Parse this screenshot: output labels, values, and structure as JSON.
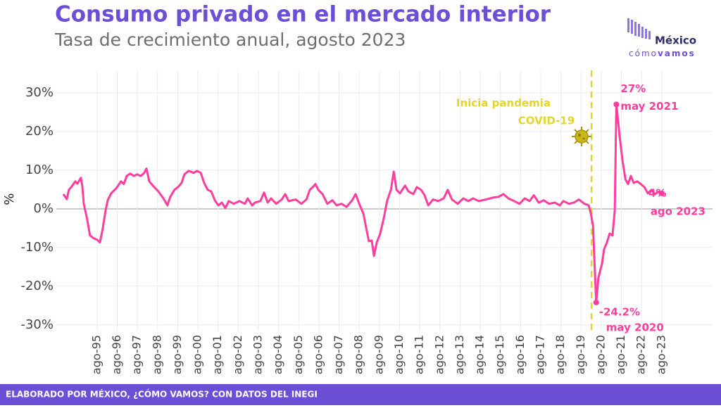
{
  "chart_data": {
    "type": "line",
    "title": "Consumo privado en el mercado interior",
    "subtitle": "Tasa de crecimiento anual, agosto 2023",
    "y_label": "%",
    "brand": {
      "name": "México",
      "tagline_a": "cómo",
      "tagline_b": "vamos"
    },
    "footer": "ELABORADO POR MÉXICO, ¿CÓMO VAMOS? CON DATOS DEL INEGI",
    "grid": true,
    "xlim": [
      1993.56,
      2026.1
    ],
    "ylim": [
      -31.5,
      35.8
    ],
    "yticks": [
      {
        "value": -30,
        "label": "-30%"
      },
      {
        "value": -20,
        "label": "-20%"
      },
      {
        "value": -10,
        "label": "-10%"
      },
      {
        "value": 0,
        "label": "0%"
      },
      {
        "value": 10,
        "label": "10%"
      },
      {
        "value": 20,
        "label": "20%"
      },
      {
        "value": 30,
        "label": "30%"
      }
    ],
    "xticks": [
      {
        "value": 1995.58,
        "label": "ago-95"
      },
      {
        "value": 1996.58,
        "label": "ago-96"
      },
      {
        "value": 1997.58,
        "label": "ago-97"
      },
      {
        "value": 1998.58,
        "label": "ago-98"
      },
      {
        "value": 1999.58,
        "label": "ago-99"
      },
      {
        "value": 2000.58,
        "label": "ago-00"
      },
      {
        "value": 2001.58,
        "label": "ago-01"
      },
      {
        "value": 2002.58,
        "label": "ago-02"
      },
      {
        "value": 2003.58,
        "label": "ago-03"
      },
      {
        "value": 2004.58,
        "label": "ago-04"
      },
      {
        "value": 2005.58,
        "label": "ago-05"
      },
      {
        "value": 2006.58,
        "label": "ago-06"
      },
      {
        "value": 2007.58,
        "label": "ago-07"
      },
      {
        "value": 2008.58,
        "label": "ago-08"
      },
      {
        "value": 2009.58,
        "label": "ago-09"
      },
      {
        "value": 2010.58,
        "label": "ago-10"
      },
      {
        "value": 2011.58,
        "label": "ago-11"
      },
      {
        "value": 2012.58,
        "label": "ago-12"
      },
      {
        "value": 2013.58,
        "label": "ago-13"
      },
      {
        "value": 2014.58,
        "label": "ago-14"
      },
      {
        "value": 2015.58,
        "label": "ago-15"
      },
      {
        "value": 2016.58,
        "label": "ago-16"
      },
      {
        "value": 2017.58,
        "label": "ago-17"
      },
      {
        "value": 2018.58,
        "label": "ago-18"
      },
      {
        "value": 2019.58,
        "label": "ago-19"
      },
      {
        "value": 2020.58,
        "label": "ago-20"
      },
      {
        "value": 2021.58,
        "label": "ago-21"
      },
      {
        "value": 2022.58,
        "label": "ago-22"
      },
      {
        "value": 2023.58,
        "label": "ago-23"
      }
    ],
    "x": [
      1993.91,
      1994.08,
      1994.18,
      1994.33,
      1994.5,
      1994.6,
      1994.78,
      1994.85,
      1994.92,
      1995.09,
      1995.23,
      1995.41,
      1995.58,
      1995.72,
      1995.86,
      1996.0,
      1996.11,
      1996.28,
      1996.53,
      1996.77,
      1996.91,
      1997.05,
      1997.22,
      1997.4,
      1997.57,
      1997.75,
      1997.92,
      1998.03,
      1998.17,
      1998.38,
      1998.62,
      1998.87,
      1999.07,
      1999.21,
      1999.42,
      1999.63,
      1999.77,
      1999.91,
      2000.12,
      2000.37,
      2000.54,
      2000.72,
      2000.89,
      2001.07,
      2001.24,
      2001.42,
      2001.59,
      2001.77,
      2001.94,
      2002.11,
      2002.36,
      2002.64,
      2002.91,
      2003.05,
      2003.27,
      2003.41,
      2003.68,
      2003.86,
      2004.04,
      2004.21,
      2004.46,
      2004.74,
      2004.91,
      2005.08,
      2005.43,
      2005.71,
      2005.96,
      2006.13,
      2006.31,
      2006.41,
      2006.55,
      2006.76,
      2007.0,
      2007.25,
      2007.46,
      2007.7,
      2007.95,
      2008.23,
      2008.4,
      2008.58,
      2008.79,
      2008.93,
      2009.06,
      2009.2,
      2009.31,
      2009.45,
      2009.62,
      2009.8,
      2009.97,
      2010.15,
      2010.29,
      2010.43,
      2010.6,
      2010.85,
      2011.02,
      2011.26,
      2011.44,
      2011.65,
      2011.82,
      2012.0,
      2012.24,
      2012.49,
      2012.77,
      2012.97,
      2013.18,
      2013.46,
      2013.74,
      2013.99,
      2014.23,
      2014.51,
      2014.86,
      2015.21,
      2015.49,
      2015.73,
      2015.98,
      2016.26,
      2016.53,
      2016.78,
      2017.03,
      2017.24,
      2017.48,
      2017.73,
      2018.0,
      2018.28,
      2018.53,
      2018.7,
      2018.98,
      2019.23,
      2019.47,
      2019.75,
      2019.96,
      2020.06,
      2020.17,
      2020.33,
      2020.44,
      2020.62,
      2020.72,
      2020.86,
      2021.0,
      2021.14,
      2021.25,
      2021.33,
      2021.5,
      2021.64,
      2021.78,
      2021.91,
      2022.05,
      2022.19,
      2022.37,
      2022.54,
      2022.72,
      2022.89,
      2023.07,
      2023.24,
      2023.42,
      2023.58
    ],
    "series": [
      {
        "name": "Consumo privado",
        "color": "#ff3d9e",
        "values": [
          3.8,
          2.5,
          4.9,
          5.8,
          7.1,
          6.5,
          8,
          5.8,
          1.3,
          -2.7,
          -6.9,
          -7.6,
          -8,
          -8.7,
          -5.1,
          -0.5,
          2.2,
          4,
          5.3,
          7.1,
          6.4,
          8.5,
          9.1,
          8.5,
          8.9,
          8.5,
          9.3,
          10.4,
          7.1,
          5.8,
          4.5,
          2.7,
          0.9,
          3.1,
          4.9,
          5.8,
          6.7,
          8.9,
          9.8,
          9.3,
          9.8,
          9.3,
          6.7,
          4.9,
          4.5,
          2.2,
          0.9,
          1.6,
          0.2,
          2,
          1.3,
          2,
          1.3,
          2.7,
          0.9,
          1.6,
          2,
          4.2,
          1.6,
          2.7,
          1.3,
          2.4,
          3.8,
          2,
          2.4,
          1.3,
          2.4,
          4.9,
          5.8,
          6.4,
          4.9,
          3.8,
          1.3,
          2.2,
          0.9,
          1.3,
          0.5,
          2.2,
          3.8,
          1.3,
          -1.3,
          -5.1,
          -8.4,
          -8.2,
          -12.2,
          -8.7,
          -6.4,
          -2.4,
          2.2,
          4.9,
          9.6,
          4.9,
          4,
          6,
          4.5,
          3.8,
          5.6,
          4.9,
          3.5,
          0.9,
          2.4,
          2,
          2.7,
          4.9,
          2.4,
          1.3,
          2.7,
          2,
          2.7,
          2,
          2.4,
          2.9,
          3.1,
          3.8,
          2.7,
          2,
          1.3,
          2.7,
          2,
          3.5,
          1.6,
          2.2,
          1.3,
          1.6,
          0.9,
          2,
          1.3,
          1.6,
          2.4,
          1.3,
          0.9,
          -1.1,
          -4.2,
          -24.2,
          -17.8,
          -14.2,
          -10.5,
          -8.7,
          -6.4,
          -6.9,
          -0.5,
          27,
          18.5,
          12.2,
          7.6,
          6.4,
          8.5,
          6.7,
          7.1,
          6.4,
          5.6,
          4,
          4.9,
          3.8,
          4.4,
          4
        ]
      }
    ],
    "annotations": [
      {
        "x": 2021.33,
        "y": 27,
        "text": "27%",
        "date": "may 2021"
      },
      {
        "x": 2020.33,
        "y": -24.2,
        "text": "-24.2%",
        "date": "may 2020"
      },
      {
        "x": 2023.58,
        "y": 4,
        "text": "4%",
        "date": "ago 2023"
      }
    ],
    "event": {
      "x": 2020.1,
      "line1": "Inicia pandemia",
      "line2": "COVID-19",
      "color": "#e3d52e"
    }
  }
}
